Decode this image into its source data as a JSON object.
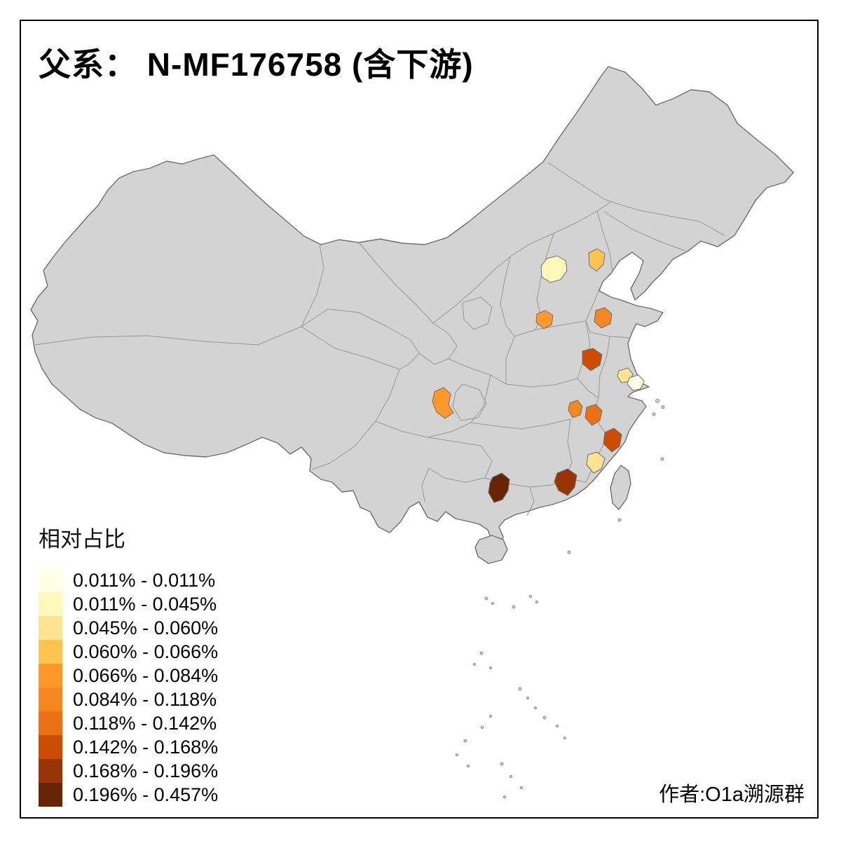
{
  "page": {
    "title": "父系： N-MF176758 (含下游)",
    "credit": "作者:O1a溯源群",
    "background": "#FFFFFF"
  },
  "legend": {
    "title": "相对占比",
    "items": [
      {
        "label": "0.011% - 0.011%",
        "color": "#FFFFE5"
      },
      {
        "label": "0.011% - 0.045%",
        "color": "#FFF7BC"
      },
      {
        "label": "0.045% - 0.060%",
        "color": "#FEE391"
      },
      {
        "label": "0.060% - 0.066%",
        "color": "#FEC44F"
      },
      {
        "label": "0.066% - 0.084%",
        "color": "#FE9929"
      },
      {
        "label": "0.084% - 0.118%",
        "color": "#F58721"
      },
      {
        "label": "0.118% - 0.142%",
        "color": "#EC7014"
      },
      {
        "label": "0.142% - 0.168%",
        "color": "#CC4C02"
      },
      {
        "label": "0.168% - 0.196%",
        "color": "#993404"
      },
      {
        "label": "0.196% - 0.457%",
        "color": "#662506"
      }
    ]
  },
  "map": {
    "land_fill": "#D3D3D3",
    "province_border_color": "#979797",
    "outer_border_color": "#6F6F6F",
    "regions": [
      {
        "name": "beijing-area",
        "color_class": 2
      },
      {
        "name": "tianjin-tangshan",
        "color_class": 4
      },
      {
        "name": "north-henan",
        "color_class": 5
      },
      {
        "name": "central-shandong",
        "color_class": 6
      },
      {
        "name": "north-anhui",
        "color_class": 8
      },
      {
        "name": "south-jiangsu",
        "color_class": 3
      },
      {
        "name": "shanghai-area",
        "color_class": 1
      },
      {
        "name": "chongqing-area",
        "color_class": 5
      },
      {
        "name": "east-hunan",
        "color_class": 6
      },
      {
        "name": "northeast-jiangxi",
        "color_class": 7
      },
      {
        "name": "northeast-fujian",
        "color_class": 8
      },
      {
        "name": "central-fujian",
        "color_class": 3
      },
      {
        "name": "east-guangdong",
        "color_class": 9
      },
      {
        "name": "east-guangxi",
        "color_class": 10
      }
    ]
  }
}
